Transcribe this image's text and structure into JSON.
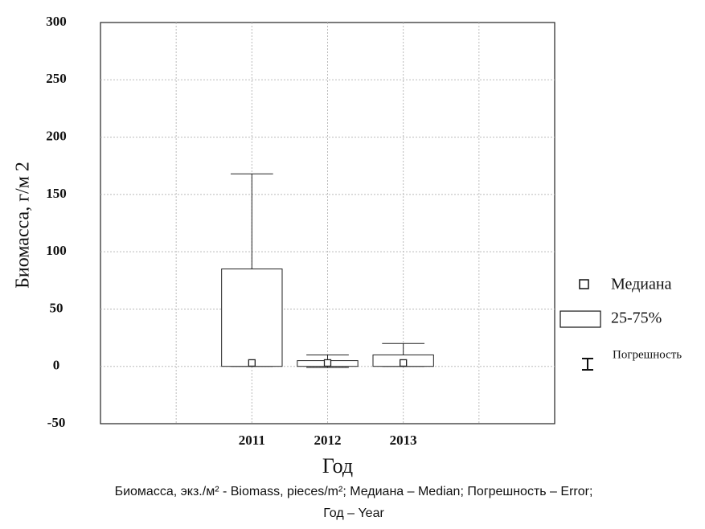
{
  "chart_data": {
    "type": "box",
    "y_label": "Биомасса, г/м 2",
    "x_label": "Год",
    "categories": [
      "2011",
      "2012",
      "2013"
    ],
    "median": [
      3,
      3,
      3
    ],
    "q1": [
      0,
      0,
      0
    ],
    "q3": [
      85,
      5,
      10
    ],
    "whisker_low": [
      0,
      -1,
      0
    ],
    "whisker_high": [
      168,
      10,
      20
    ],
    "ylim": [
      -50,
      300
    ],
    "yticks": [
      -50,
      0,
      50,
      100,
      150,
      200,
      250,
      300
    ],
    "grid": true,
    "legend": {
      "median": "Медиана",
      "box": "25-75%",
      "whisker": "Погрешность"
    },
    "caption": [
      "Биомасса, экз./м² - Biomass, pieces/m²; Медиана – Median; Погрешность – Error;",
      "Год – Year"
    ]
  }
}
